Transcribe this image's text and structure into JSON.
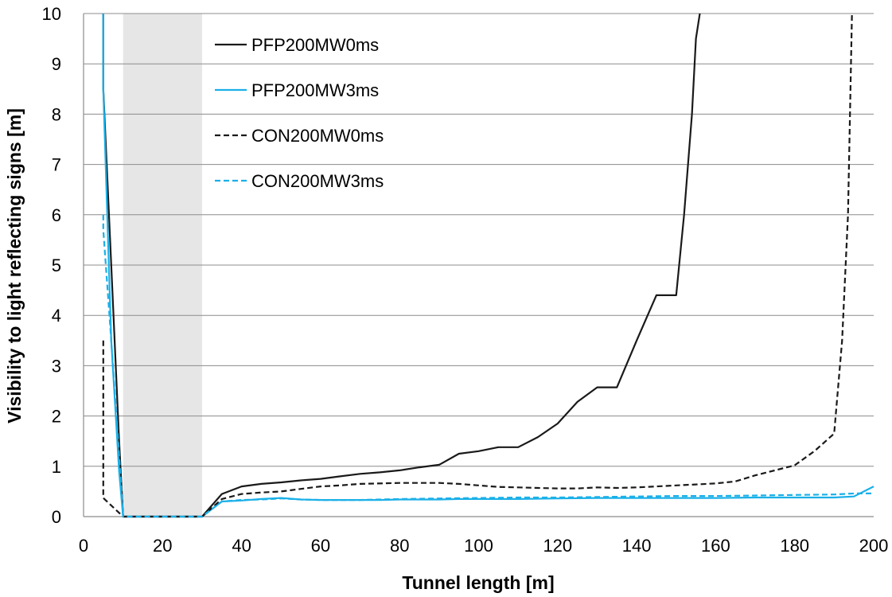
{
  "chart_data": {
    "type": "line",
    "title": "",
    "xlabel": "Tunnel length [m]",
    "ylabel": "Visibility to light reflecting signs [m]",
    "xlim": [
      0,
      200
    ],
    "ylim": [
      0,
      10
    ],
    "xticks": [
      0,
      20,
      40,
      60,
      80,
      100,
      120,
      140,
      160,
      180,
      200
    ],
    "yticks": [
      0,
      1,
      2,
      3,
      4,
      5,
      6,
      7,
      8,
      9,
      10
    ],
    "grid": "horizontal",
    "legend_position": "top-left",
    "shaded_region": {
      "x0": 10,
      "x1": 30,
      "color": "#e6e6e6"
    },
    "series": [
      {
        "name": "PFP200MW0ms",
        "color": "#1a1a1a",
        "dash": "solid",
        "points": [
          [
            5,
            10
          ],
          [
            5,
            8.5
          ],
          [
            7,
            5
          ],
          [
            9,
            1.5
          ],
          [
            10,
            0
          ],
          [
            30,
            0
          ],
          [
            35,
            0.45
          ],
          [
            40,
            0.6
          ],
          [
            45,
            0.65
          ],
          [
            50,
            0.68
          ],
          [
            55,
            0.72
          ],
          [
            60,
            0.75
          ],
          [
            65,
            0.8
          ],
          [
            70,
            0.85
          ],
          [
            75,
            0.88
          ],
          [
            80,
            0.92
          ],
          [
            85,
            0.98
          ],
          [
            90,
            1.03
          ],
          [
            95,
            1.25
          ],
          [
            100,
            1.3
          ],
          [
            105,
            1.38
          ],
          [
            110,
            1.38
          ],
          [
            115,
            1.58
          ],
          [
            120,
            1.85
          ],
          [
            125,
            2.28
          ],
          [
            130,
            2.57
          ],
          [
            135,
            2.57
          ],
          [
            140,
            3.5
          ],
          [
            145,
            4.4
          ],
          [
            150,
            4.4
          ],
          [
            152,
            6.0
          ],
          [
            154,
            8.0
          ],
          [
            155,
            9.5
          ],
          [
            156,
            10
          ]
        ]
      },
      {
        "name": "PFP200MW3ms",
        "color": "#1ab0e8",
        "dash": "solid",
        "points": [
          [
            5,
            10
          ],
          [
            5,
            8.5
          ],
          [
            7,
            3.5
          ],
          [
            9,
            0.9
          ],
          [
            10,
            0
          ],
          [
            30,
            0
          ],
          [
            35,
            0.3
          ],
          [
            40,
            0.32
          ],
          [
            45,
            0.35
          ],
          [
            50,
            0.37
          ],
          [
            55,
            0.34
          ],
          [
            60,
            0.33
          ],
          [
            65,
            0.33
          ],
          [
            70,
            0.33
          ],
          [
            75,
            0.33
          ],
          [
            80,
            0.34
          ],
          [
            85,
            0.34
          ],
          [
            90,
            0.34
          ],
          [
            95,
            0.35
          ],
          [
            100,
            0.35
          ],
          [
            110,
            0.35
          ],
          [
            120,
            0.36
          ],
          [
            130,
            0.37
          ],
          [
            140,
            0.37
          ],
          [
            150,
            0.37
          ],
          [
            160,
            0.37
          ],
          [
            170,
            0.38
          ],
          [
            180,
            0.38
          ],
          [
            190,
            0.38
          ],
          [
            195,
            0.4
          ],
          [
            200,
            0.6
          ]
        ]
      },
      {
        "name": "CON200MW0ms",
        "color": "#1a1a1a",
        "dash": "dashed",
        "points": [
          [
            5,
            3.5
          ],
          [
            5,
            0.37
          ],
          [
            10,
            0
          ],
          [
            30,
            0
          ],
          [
            35,
            0.35
          ],
          [
            40,
            0.45
          ],
          [
            45,
            0.48
          ],
          [
            50,
            0.5
          ],
          [
            55,
            0.55
          ],
          [
            60,
            0.6
          ],
          [
            65,
            0.62
          ],
          [
            70,
            0.65
          ],
          [
            80,
            0.67
          ],
          [
            90,
            0.67
          ],
          [
            95,
            0.65
          ],
          [
            100,
            0.62
          ],
          [
            105,
            0.59
          ],
          [
            110,
            0.58
          ],
          [
            115,
            0.57
          ],
          [
            120,
            0.56
          ],
          [
            125,
            0.56
          ],
          [
            130,
            0.58
          ],
          [
            135,
            0.57
          ],
          [
            140,
            0.58
          ],
          [
            145,
            0.6
          ],
          [
            150,
            0.62
          ],
          [
            155,
            0.64
          ],
          [
            160,
            0.66
          ],
          [
            165,
            0.7
          ],
          [
            170,
            0.82
          ],
          [
            175,
            0.92
          ],
          [
            180,
            1.02
          ],
          [
            185,
            1.3
          ],
          [
            190,
            1.65
          ],
          [
            192,
            3.5
          ],
          [
            193.5,
            6.0
          ],
          [
            194,
            8.0
          ],
          [
            194.5,
            10
          ]
        ]
      },
      {
        "name": "CON200MW3ms",
        "color": "#1ab0e8",
        "dash": "dashed",
        "points": [
          [
            5,
            6.0
          ],
          [
            5,
            5.7
          ],
          [
            7,
            3.5
          ],
          [
            9,
            1.2
          ],
          [
            10,
            0
          ],
          [
            30,
            0
          ],
          [
            35,
            0.3
          ],
          [
            40,
            0.33
          ],
          [
            45,
            0.34
          ],
          [
            50,
            0.36
          ],
          [
            55,
            0.34
          ],
          [
            60,
            0.33
          ],
          [
            70,
            0.33
          ],
          [
            80,
            0.35
          ],
          [
            90,
            0.36
          ],
          [
            100,
            0.37
          ],
          [
            110,
            0.38
          ],
          [
            120,
            0.38
          ],
          [
            130,
            0.39
          ],
          [
            140,
            0.4
          ],
          [
            150,
            0.41
          ],
          [
            160,
            0.41
          ],
          [
            170,
            0.42
          ],
          [
            180,
            0.43
          ],
          [
            190,
            0.44
          ],
          [
            195,
            0.46
          ],
          [
            200,
            0.46
          ]
        ]
      }
    ]
  }
}
